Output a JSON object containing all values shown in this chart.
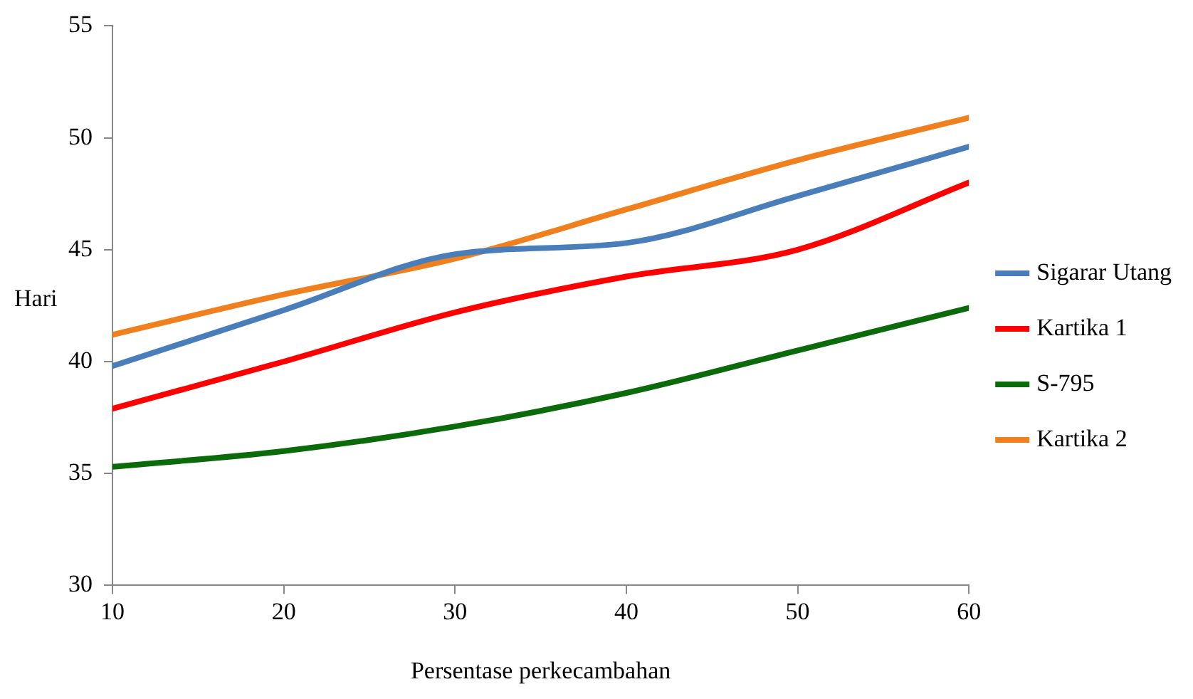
{
  "chart_data": {
    "type": "line",
    "xlabel": "Persentase perkecambahan",
    "ylabel": "Hari",
    "x": [
      10,
      20,
      30,
      40,
      50,
      60
    ],
    "series": [
      {
        "name": "Sigarar Utang",
        "color": "#4a7ebb",
        "values": [
          39.8,
          42.3,
          44.8,
          45.3,
          47.4,
          49.6
        ]
      },
      {
        "name": "Kartika 1",
        "color": "#ff0000",
        "values": [
          37.9,
          40.0,
          42.2,
          43.8,
          45.0,
          48.0
        ]
      },
      {
        "name": "S-795",
        "color": "#0b6b0b",
        "values": [
          35.3,
          36.0,
          37.1,
          38.6,
          40.5,
          42.4
        ]
      },
      {
        "name": "Kartika 2",
        "color": "#f0801e",
        "values": [
          41.2,
          43.0,
          44.6,
          46.8,
          49.0,
          50.9
        ]
      }
    ],
    "xlim": [
      10,
      60
    ],
    "xticks": [
      10,
      20,
      30,
      40,
      50,
      60
    ],
    "ylim": [
      30,
      55
    ],
    "yticks": [
      30,
      35,
      40,
      45,
      50,
      55
    ],
    "grid": false,
    "legend": "right",
    "marker": "none",
    "line_style": "solid"
  }
}
